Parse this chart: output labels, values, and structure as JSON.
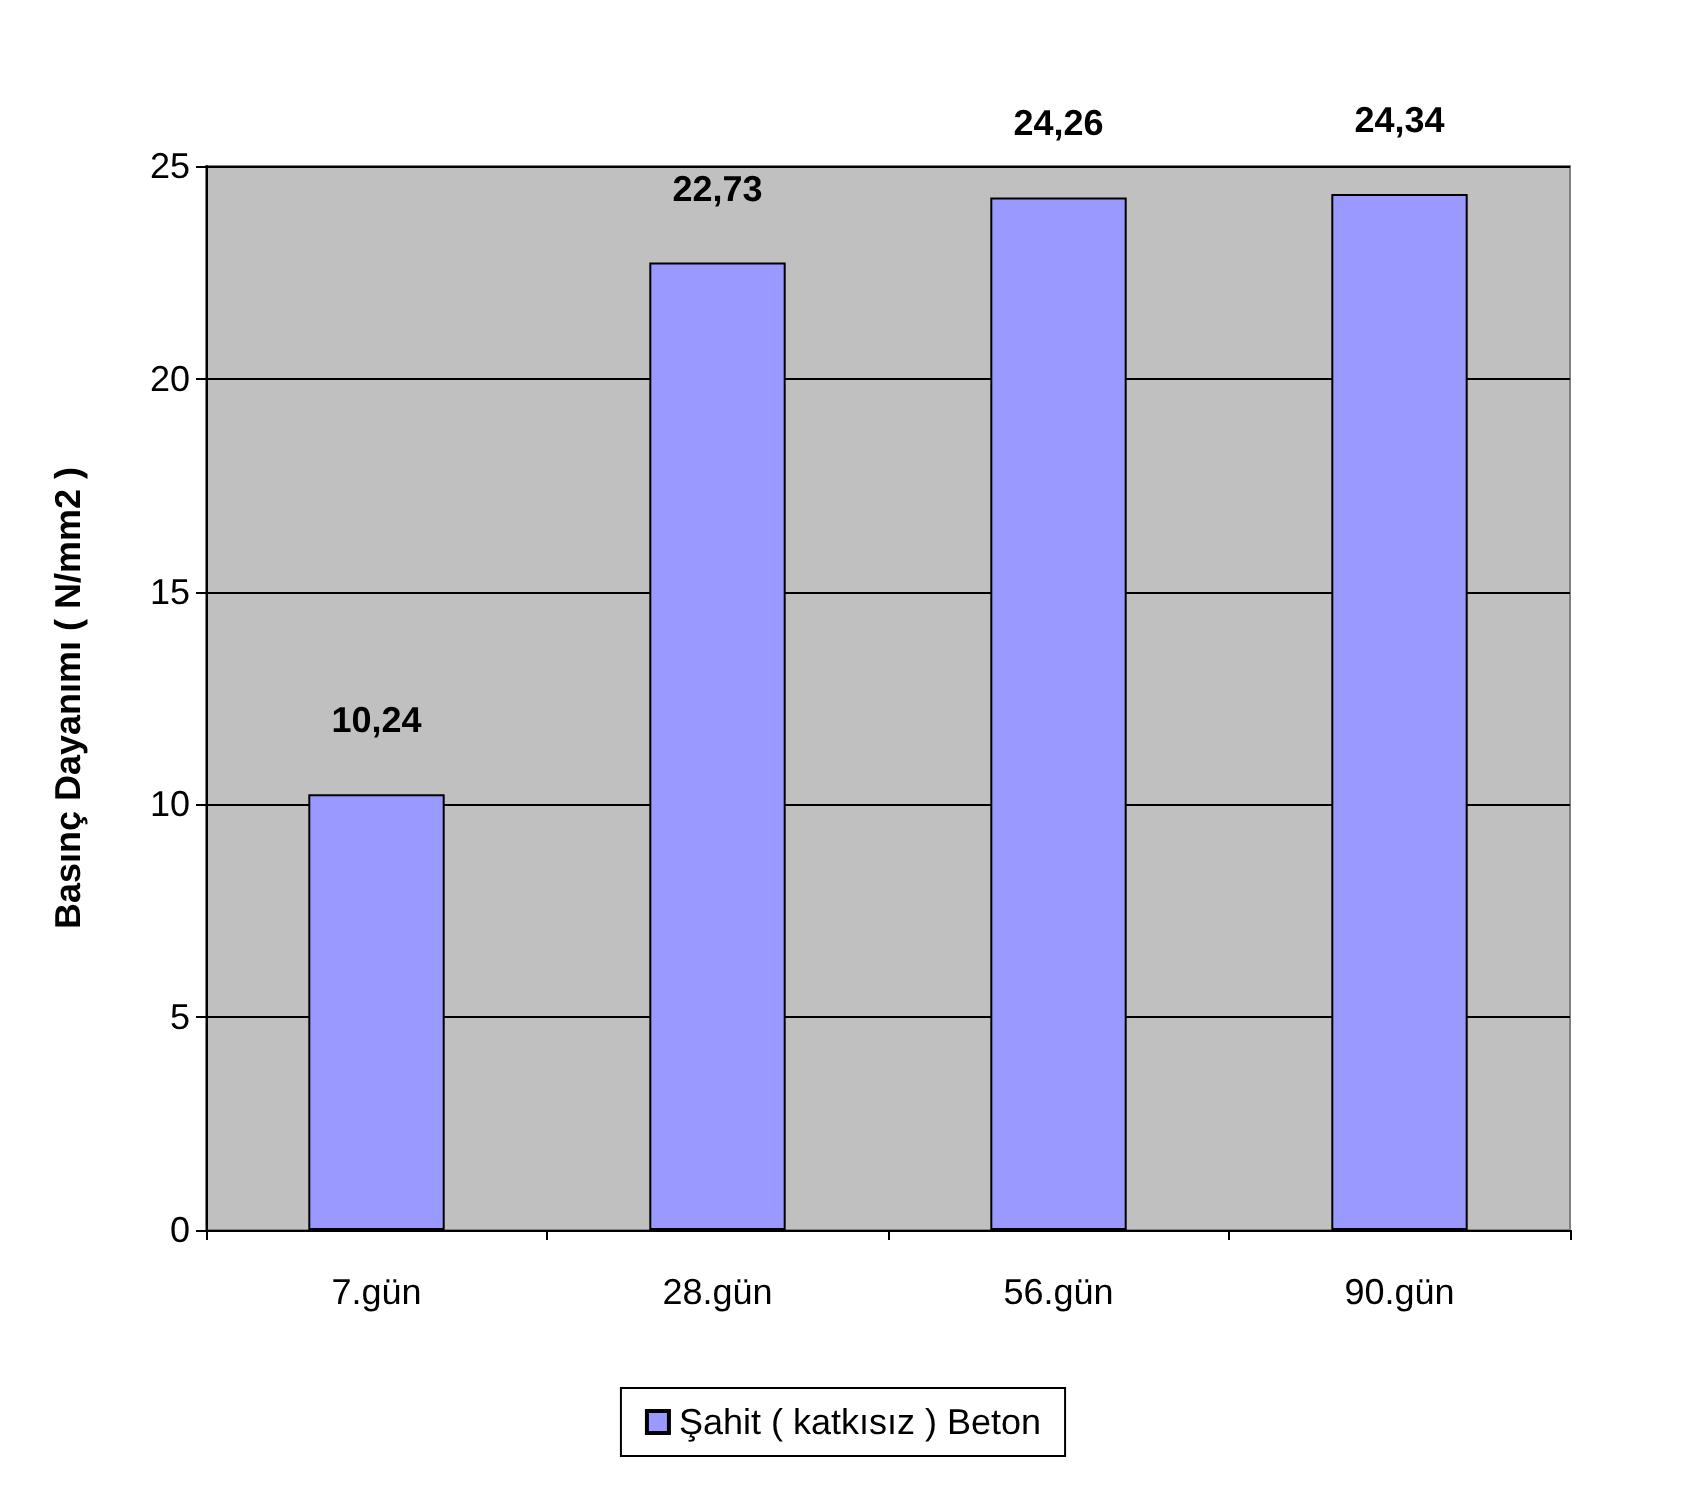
{
  "chart_data": {
    "type": "bar",
    "ylabel": "Basınç Dayanımı ( N/mm2 )",
    "categories": [
      "7.gün",
      "28.gün",
      "56.gün",
      "90.gün"
    ],
    "series": [
      {
        "name": "Şahit ( katkısız ) Beton",
        "color": "#9999ff",
        "values": [
          10.24,
          22.73,
          24.26,
          24.34
        ],
        "value_labels": [
          "10,24",
          "22,73",
          "24,26",
          "24,34"
        ]
      }
    ],
    "ylim": [
      0,
      25
    ],
    "yticks": [
      0,
      5,
      10,
      15,
      20,
      25
    ],
    "grid": "y",
    "legend": "bottom"
  }
}
